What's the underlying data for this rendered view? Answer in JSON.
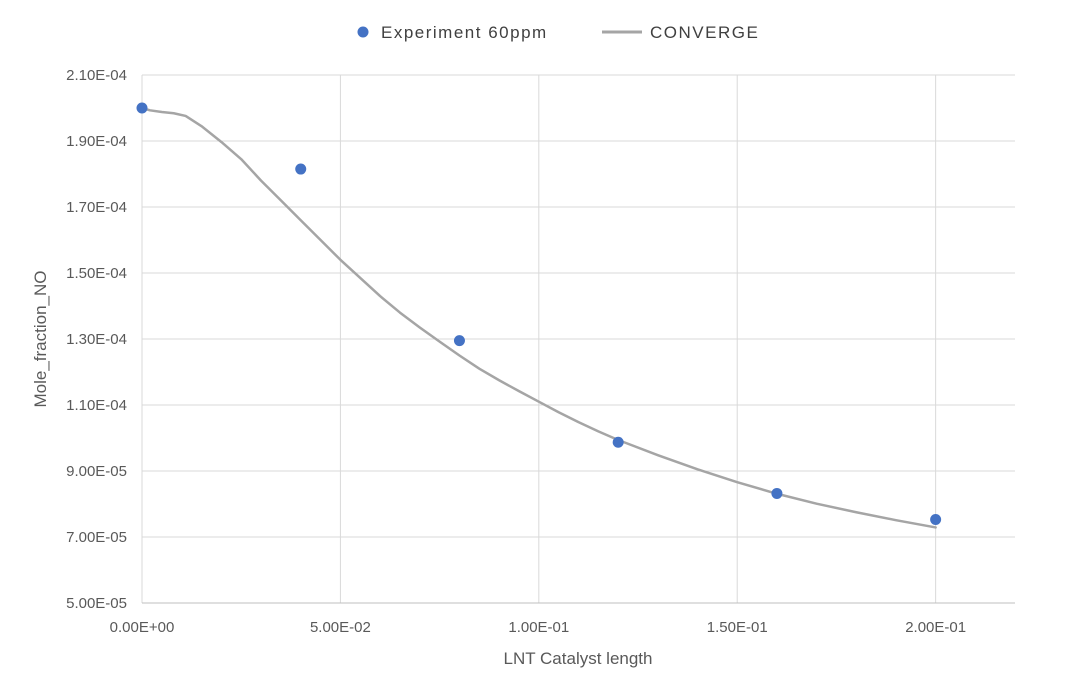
{
  "chart_data": {
    "type": "scatter",
    "xlabel": "LNT Catalyst length",
    "ylabel": "Mole_fraction_NO",
    "xlim": [
      0,
      0.22
    ],
    "ylim": [
      5e-05,
      0.00021
    ],
    "x_ticks": [
      0,
      0.05,
      0.1,
      0.15,
      0.2
    ],
    "x_tick_labels": [
      "0.00E+00",
      "5.00E-02",
      "1.00E-01",
      "1.50E-01",
      "2.00E-01"
    ],
    "y_ticks": [
      5e-05,
      7e-05,
      9e-05,
      0.00011,
      0.00013,
      0.00015,
      0.00017,
      0.00019,
      0.00021
    ],
    "y_tick_labels": [
      "5.00E-05",
      "7.00E-05",
      "9.00E-05",
      "1.10E-04",
      "1.30E-04",
      "1.50E-04",
      "1.70E-04",
      "1.90E-04",
      "2.10E-04"
    ],
    "grid": true,
    "legend_position": "top-center",
    "series": [
      {
        "name": "Experiment 60ppm",
        "kind": "scatter",
        "color": "#4472C4",
        "x": [
          0,
          0.04,
          0.08,
          0.12,
          0.16,
          0.2
        ],
        "y": [
          0.0002,
          0.0001815,
          0.0001295,
          9.87e-05,
          8.32e-05,
          7.53e-05
        ]
      },
      {
        "name": "CONVERGE",
        "kind": "line",
        "color": "#A5A5A5",
        "x": [
          0,
          0.002,
          0.005,
          0.008,
          0.011,
          0.015,
          0.02,
          0.025,
          0.03,
          0.035,
          0.04,
          0.045,
          0.05,
          0.055,
          0.06,
          0.065,
          0.07,
          0.075,
          0.08,
          0.085,
          0.09,
          0.095,
          0.1,
          0.105,
          0.11,
          0.115,
          0.12,
          0.13,
          0.14,
          0.15,
          0.16,
          0.17,
          0.18,
          0.19,
          0.2
        ],
        "y": [
          0.0002,
          0.0001993,
          0.0001988,
          0.0001984,
          0.0001976,
          0.0001945,
          0.0001897,
          0.0001845,
          0.000178,
          0.000172,
          0.000166,
          0.00016,
          0.000154,
          0.0001485,
          0.000143,
          0.000138,
          0.0001335,
          0.0001292,
          0.000125,
          0.000121,
          0.0001175,
          0.0001142,
          0.000111,
          0.0001078,
          0.0001048,
          0.000102,
          9.94e-05,
          9.48e-05,
          9.05e-05,
          8.66e-05,
          8.31e-05,
          8.01e-05,
          7.75e-05,
          7.51e-05,
          7.29e-05
        ]
      }
    ]
  }
}
